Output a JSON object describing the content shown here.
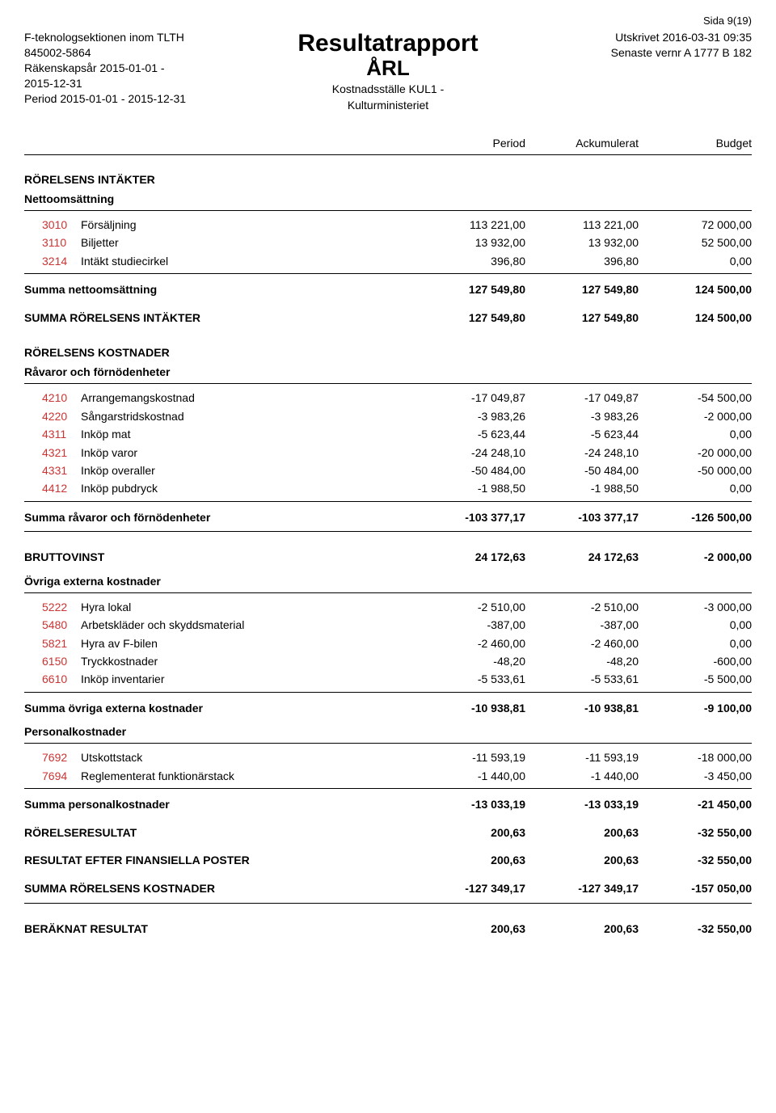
{
  "page_info": "Sida 9(19)",
  "header": {
    "left": {
      "org": "F-teknologsektionen inom TLTH",
      "orgnr": "845002-5864",
      "fiscal": "Räkenskapsår 2015-01-01 -",
      "fiscal2": "2015-12-31",
      "period": "Period 2015-01-01 - 2015-12-31"
    },
    "center": {
      "title": "Resultatrapport",
      "subtitle": "ÅRL",
      "subsub1": "Kostnadsställe KUL1 -",
      "subsub2": "Kulturministeriet"
    },
    "right": {
      "printed": "Utskrivet 2016-03-31 09:35",
      "ver": "Senaste vernr A 1777 B 182"
    }
  },
  "columns": {
    "c1": "Period",
    "c2": "Ackumulerat",
    "c3": "Budget"
  },
  "colors": {
    "account_code": "#cc3333",
    "text": "#000000",
    "bg": "#ffffff"
  },
  "sections": {
    "intakter_title": "RÖRELSENS INTÄKTER",
    "netto_title": "Nettoomsättning",
    "netto_rows": [
      {
        "code": "3010",
        "label": "Försäljning",
        "p": "113 221,00",
        "a": "113 221,00",
        "b": "72 000,00"
      },
      {
        "code": "3110",
        "label": "Biljetter",
        "p": "13 932,00",
        "a": "13 932,00",
        "b": "52 500,00"
      },
      {
        "code": "3214",
        "label": "Intäkt studiecirkel",
        "p": "396,80",
        "a": "396,80",
        "b": "0,00"
      }
    ],
    "summa_netto": {
      "label": "Summa nettoomsättning",
      "p": "127 549,80",
      "a": "127 549,80",
      "b": "124 500,00"
    },
    "summa_intakter": {
      "label": "SUMMA RÖRELSENS INTÄKTER",
      "p": "127 549,80",
      "a": "127 549,80",
      "b": "124 500,00"
    },
    "kostnader_title": "RÖRELSENS KOSTNADER",
    "ravaror_title": "Råvaror och förnödenheter",
    "ravaror_rows": [
      {
        "code": "4210",
        "label": "Arrangemangskostnad",
        "p": "-17 049,87",
        "a": "-17 049,87",
        "b": "-54 500,00"
      },
      {
        "code": "4220",
        "label": "Sångarstridskostnad",
        "p": "-3 983,26",
        "a": "-3 983,26",
        "b": "-2 000,00"
      },
      {
        "code": "4311",
        "label": "Inköp mat",
        "p": "-5 623,44",
        "a": "-5 623,44",
        "b": "0,00"
      },
      {
        "code": "4321",
        "label": "Inköp varor",
        "p": "-24 248,10",
        "a": "-24 248,10",
        "b": "-20 000,00"
      },
      {
        "code": "4331",
        "label": "Inköp overaller",
        "p": "-50 484,00",
        "a": "-50 484,00",
        "b": "-50 000,00"
      },
      {
        "code": "4412",
        "label": "Inköp pubdryck",
        "p": "-1 988,50",
        "a": "-1 988,50",
        "b": "0,00"
      }
    ],
    "summa_ravaror": {
      "label": "Summa råvaror och förnödenheter",
      "p": "-103 377,17",
      "a": "-103 377,17",
      "b": "-126 500,00"
    },
    "bruttovinst": {
      "label": "BRUTTOVINST",
      "p": "24 172,63",
      "a": "24 172,63",
      "b": "-2 000,00"
    },
    "ovriga_title": "Övriga externa kostnader",
    "ovriga_rows": [
      {
        "code": "5222",
        "label": "Hyra lokal",
        "p": "-2 510,00",
        "a": "-2 510,00",
        "b": "-3 000,00"
      },
      {
        "code": "5480",
        "label": "Arbetskläder och skyddsmaterial",
        "p": "-387,00",
        "a": "-387,00",
        "b": "0,00"
      },
      {
        "code": "5821",
        "label": "Hyra av F-bilen",
        "p": "-2 460,00",
        "a": "-2 460,00",
        "b": "0,00"
      },
      {
        "code": "6150",
        "label": "Tryckkostnader",
        "p": "-48,20",
        "a": "-48,20",
        "b": "-600,00"
      },
      {
        "code": "6610",
        "label": "Inköp inventarier",
        "p": "-5 533,61",
        "a": "-5 533,61",
        "b": "-5 500,00"
      }
    ],
    "summa_ovriga": {
      "label": "Summa övriga externa kostnader",
      "p": "-10 938,81",
      "a": "-10 938,81",
      "b": "-9 100,00"
    },
    "personal_title": "Personalkostnader",
    "personal_rows": [
      {
        "code": "7692",
        "label": "Utskottstack",
        "p": "-11 593,19",
        "a": "-11 593,19",
        "b": "-18 000,00"
      },
      {
        "code": "7694",
        "label": "Reglementerat funktionärstack",
        "p": "-1 440,00",
        "a": "-1 440,00",
        "b": "-3 450,00"
      }
    ],
    "summa_personal": {
      "label": "Summa personalkostnader",
      "p": "-13 033,19",
      "a": "-13 033,19",
      "b": "-21 450,00"
    },
    "rorelseresultat": {
      "label": "RÖRELSERESULTAT",
      "p": "200,63",
      "a": "200,63",
      "b": "-32 550,00"
    },
    "resultat_fin": {
      "label": "RESULTAT EFTER FINANSIELLA POSTER",
      "p": "200,63",
      "a": "200,63",
      "b": "-32 550,00"
    },
    "summa_kostnader": {
      "label": "SUMMA RÖRELSENS KOSTNADER",
      "p": "-127 349,17",
      "a": "-127 349,17",
      "b": "-157 050,00"
    },
    "beraknat": {
      "label": "BERÄKNAT RESULTAT",
      "p": "200,63",
      "a": "200,63",
      "b": "-32 550,00"
    }
  }
}
